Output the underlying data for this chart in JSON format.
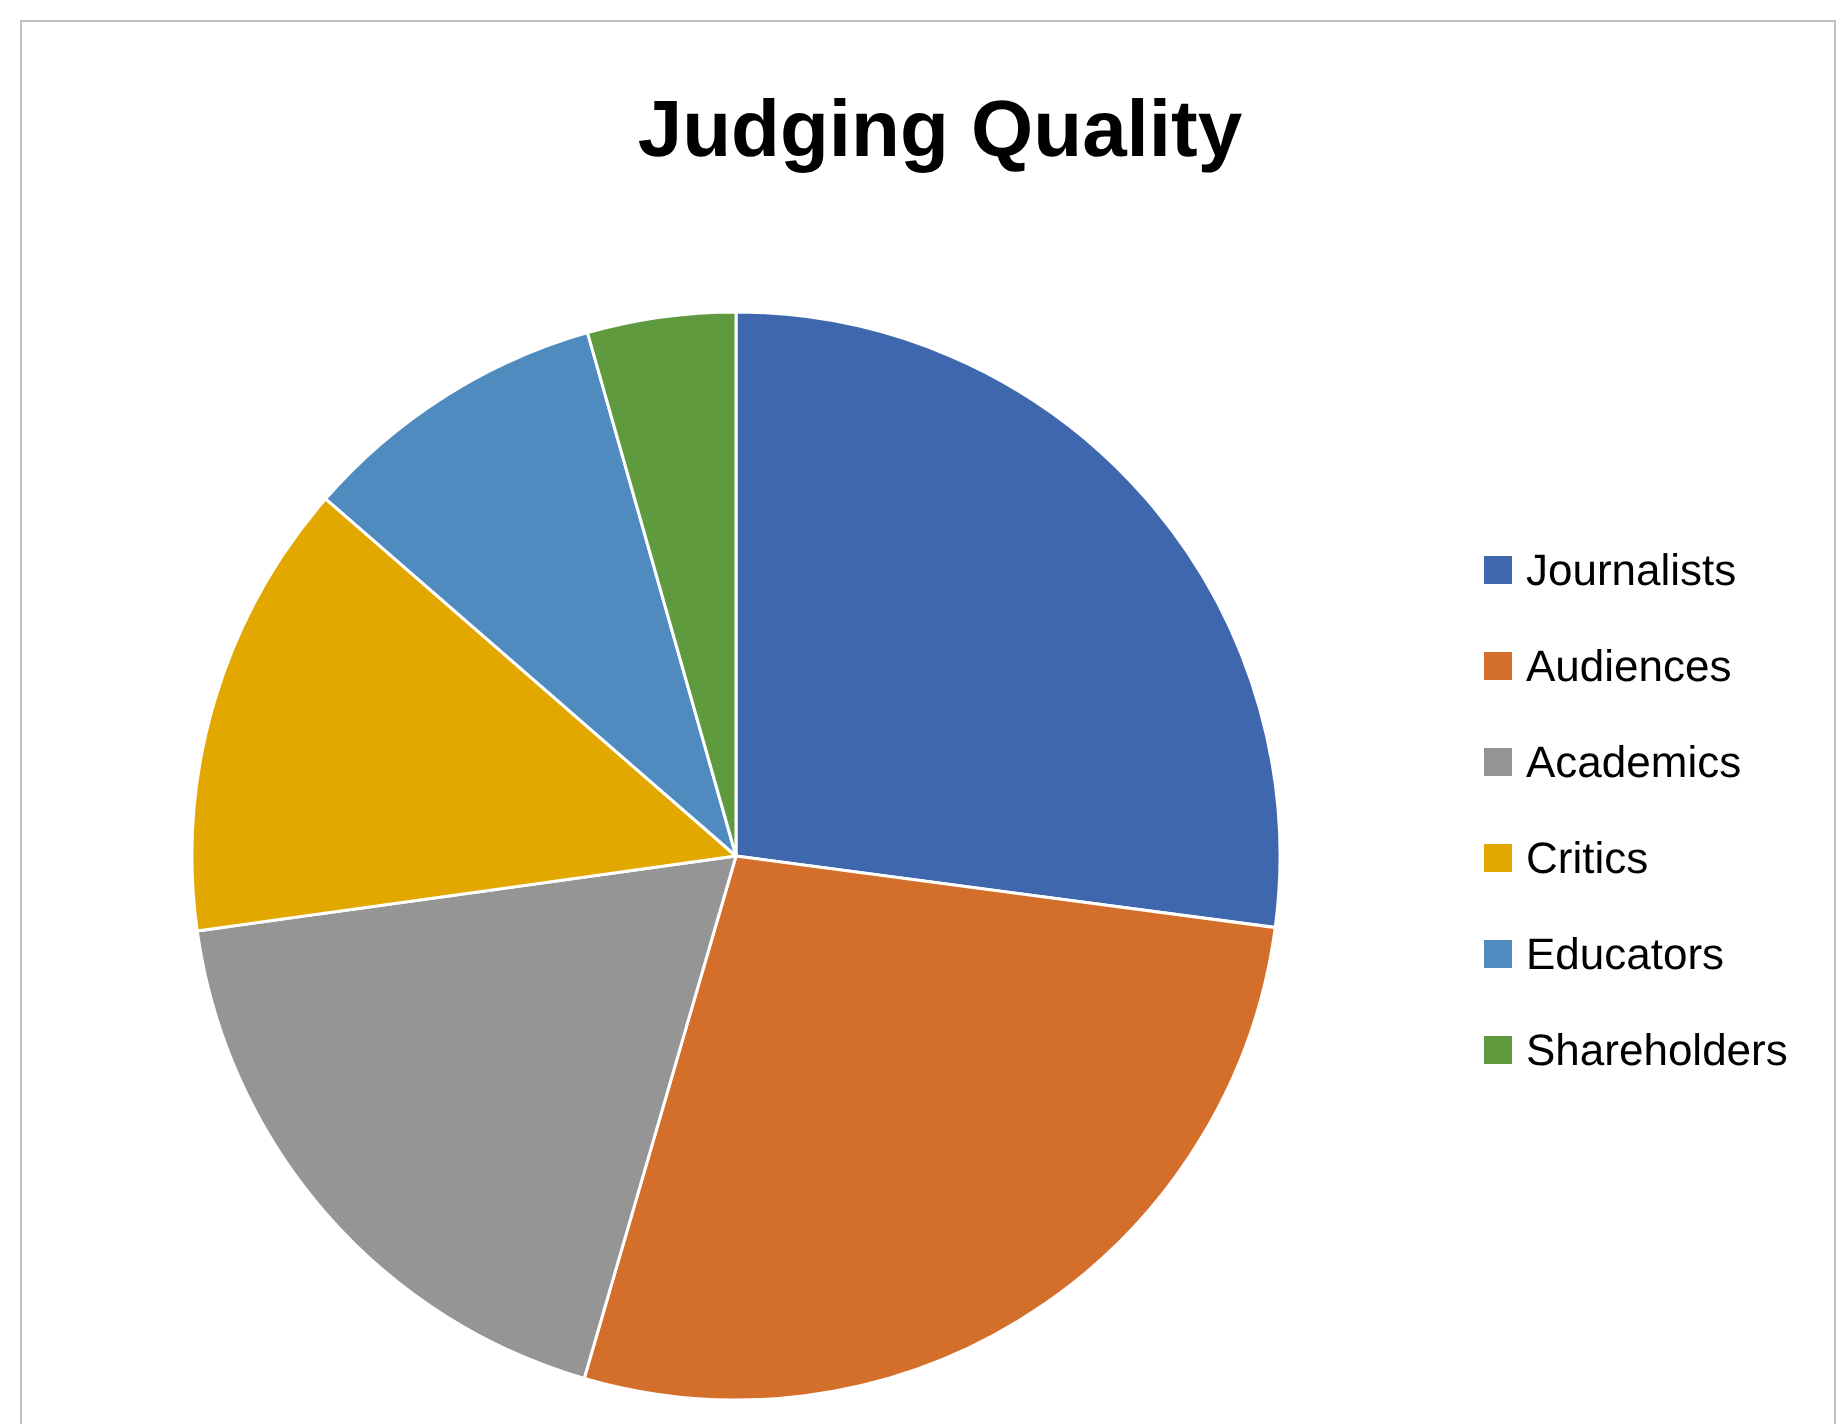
{
  "chart_data": {
    "type": "pie",
    "title": "Judging Quality",
    "categories": [
      "Journalists",
      "Audiences",
      "Academics",
      "Critics",
      "Educators",
      "Shareholders"
    ],
    "values": [
      27.1,
      27.4,
      18.3,
      13.6,
      9.2,
      4.4
    ],
    "colors": [
      "#3f67ae",
      "#d46e2b",
      "#959595",
      "#e3a800",
      "#4f8bbf",
      "#5f9a3f"
    ],
    "legend": "right"
  }
}
